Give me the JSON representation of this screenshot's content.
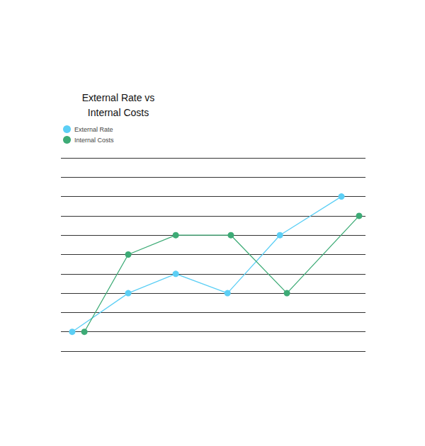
{
  "chart_data": {
    "type": "line",
    "title": "External Rate vs\nInternal Costs",
    "series": [
      {
        "name": "External Rate",
        "color": "#5ccff5",
        "x": [
          3.7,
          22.1,
          37.7,
          54.7,
          71.9,
          92.1
        ],
        "values": [
          1,
          3,
          4,
          3,
          6,
          8
        ]
      },
      {
        "name": "Internal Costs",
        "color": "#3dab76",
        "x": [
          7.7,
          22.1,
          37.7,
          55.8,
          74.2,
          97.9
        ],
        "values": [
          1,
          5,
          6,
          6,
          3,
          7
        ]
      }
    ],
    "xlim": [
      0,
      100
    ],
    "ylim": [
      0,
      10
    ],
    "yticks": [
      0,
      1,
      2,
      3,
      4,
      5,
      6,
      7,
      8,
      9,
      10
    ],
    "grid": true,
    "legend": "top-left",
    "tick_labels": false,
    "marker": "circle"
  }
}
